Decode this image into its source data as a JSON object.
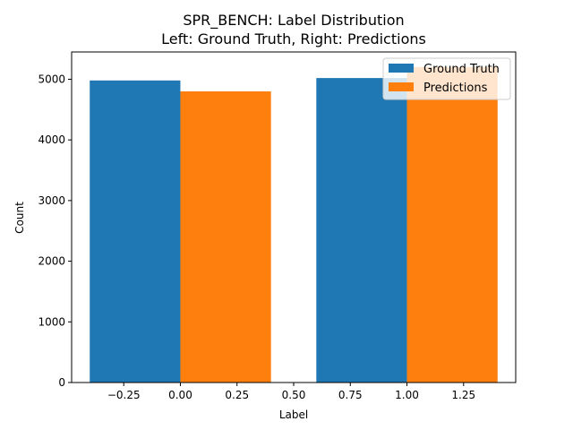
{
  "chart_data": {
    "type": "bar",
    "title": "SPR_BENCH: Label Distribution",
    "subtitle": "Left: Ground Truth, Right: Predictions",
    "xlabel": "Label",
    "ylabel": "Count",
    "xlim": [
      -0.48,
      1.48
    ],
    "ylim": [
      0,
      5450
    ],
    "xticks": [
      -0.25,
      0.0,
      0.25,
      0.5,
      0.75,
      1.0,
      1.25
    ],
    "xtick_labels": [
      "−0.25",
      "0.00",
      "0.25",
      "0.50",
      "0.75",
      "1.00",
      "1.25"
    ],
    "yticks": [
      0,
      1000,
      2000,
      3000,
      4000,
      5000
    ],
    "ytick_labels": [
      "0",
      "1000",
      "2000",
      "3000",
      "4000",
      "5000"
    ],
    "bar_width": 0.4,
    "legend_position": "top-right",
    "grid": false,
    "series": [
      {
        "name": "Ground Truth",
        "color": "#1f77b4",
        "offset": -0.2,
        "x": [
          0,
          1
        ],
        "values": [
          4980,
          5020
        ]
      },
      {
        "name": "Predictions",
        "color": "#ff7f0e",
        "offset": 0.2,
        "x": [
          0,
          1
        ],
        "values": [
          4800,
          5200
        ]
      }
    ]
  }
}
